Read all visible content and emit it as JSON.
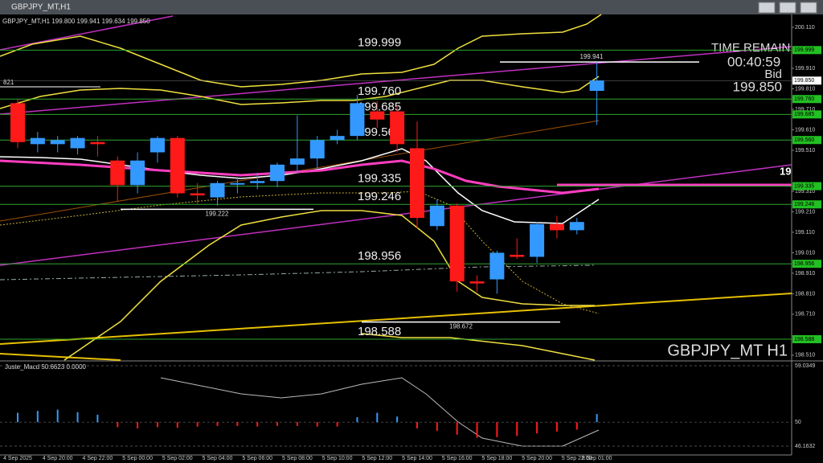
{
  "window": {
    "title": "GBPJPY_MT,H1"
  },
  "chart_data": {
    "type": "candlestick",
    "header": "GBPJPY_MT,H1  199.800 199.941 199.634 199.850",
    "symbol_label": "GBPJPY_MT H1",
    "time_remain_label": "TIME REMAIN",
    "time_remain": "00:40:59",
    "bid_label": "Bid",
    "bid": {
      "value": 199.85,
      "label": "199.850"
    },
    "left_label": "821",
    "cut_label": "19",
    "up_color": "#3399ff",
    "down_color": "#ff1a1a",
    "categories": [
      "4 Sep 2025",
      null,
      "4 Sep 20:00",
      null,
      "4 Sep 22:00",
      null,
      "5 Sep 00:00",
      null,
      "5 Sep 02:00",
      null,
      "5 Sep 04:00",
      null,
      "5 Sep 06:00",
      null,
      "5 Sep 08:00",
      null,
      "5 Sep 10:00",
      null,
      "5 Sep 12:00",
      null,
      "5 Sep 14:00",
      null,
      "5 Sep 16:00",
      null,
      "5 Sep 18:00",
      null,
      "5 Sep 20:00",
      null,
      "5 Sep 22:00",
      "8 Sep 01:00"
    ],
    "open": [
      199.74,
      199.54,
      199.54,
      199.52,
      199.55,
      199.46,
      199.34,
      199.5,
      199.57,
      199.3,
      199.28,
      199.35,
      199.35,
      199.36,
      199.44,
      199.47,
      199.56,
      199.58,
      199.7,
      199.7,
      199.52,
      199.14,
      199.24,
      198.87,
      198.88,
      199.0,
      198.99,
      199.15,
      199.12,
      199.8
    ],
    "high": [
      199.76,
      199.6,
      199.58,
      199.58,
      199.58,
      199.48,
      199.5,
      199.58,
      199.58,
      199.35,
      199.36,
      199.38,
      199.4,
      199.45,
      199.68,
      199.58,
      199.61,
      199.78,
      199.75,
      199.73,
      199.65,
      199.27,
      199.25,
      198.9,
      199.02,
      199.08,
      199.16,
      199.19,
      199.18,
      199.941
    ],
    "low": [
      199.52,
      199.5,
      199.5,
      199.49,
      199.48,
      199.26,
      199.3,
      199.45,
      199.28,
      199.25,
      199.24,
      199.3,
      199.32,
      199.33,
      199.4,
      199.42,
      199.54,
      199.56,
      199.62,
      199.5,
      199.13,
      199.12,
      198.82,
      198.82,
      198.81,
      198.98,
      198.96,
      199.08,
      199.1,
      199.634
    ],
    "close": [
      199.55,
      199.57,
      199.56,
      199.57,
      199.54,
      199.34,
      199.46,
      199.57,
      199.3,
      199.29,
      199.35,
      199.35,
      199.36,
      199.44,
      199.47,
      199.56,
      199.58,
      199.74,
      199.66,
      199.54,
      199.18,
      199.24,
      198.87,
      198.86,
      199.01,
      198.99,
      199.15,
      199.12,
      199.16,
      199.85
    ],
    "ylim": [
      198.486,
      200.165
    ],
    "yticks": [
      {
        "value": 200.11,
        "label": "200.110"
      },
      {
        "value": 199.91,
        "label": "199.910"
      },
      {
        "value": 199.81,
        "label": "199.810"
      },
      {
        "value": 199.71,
        "label": "199.710"
      },
      {
        "value": 199.61,
        "label": "199.610"
      },
      {
        "value": 199.51,
        "label": "199.510"
      },
      {
        "value": 199.31,
        "label": "199.310"
      },
      {
        "value": 199.21,
        "label": "199.210"
      },
      {
        "value": 199.11,
        "label": "199.110"
      },
      {
        "value": 199.01,
        "label": "199.010"
      },
      {
        "value": 198.91,
        "label": "198.910"
      },
      {
        "value": 198.81,
        "label": "198.810"
      },
      {
        "value": 198.71,
        "label": "198.710"
      },
      {
        "value": 198.51,
        "label": "198.510"
      }
    ],
    "levels": [
      {
        "value": 199.999,
        "label": "199.999"
      },
      {
        "value": 199.76,
        "label": "199.760"
      },
      {
        "value": 199.685,
        "label": "199.685"
      },
      {
        "value": 199.56,
        "label": "199.560"
      },
      {
        "value": 199.335,
        "label": "199.335"
      },
      {
        "value": 199.246,
        "label": "199.246"
      },
      {
        "value": 198.956,
        "label": "198.956"
      },
      {
        "value": 198.588,
        "label": "198.588"
      }
    ],
    "marker_lines": [
      {
        "value": 199.941,
        "label": "199.941"
      },
      {
        "value": 199.222,
        "label": "199.222"
      },
      {
        "value": 198.672,
        "label": "198.672"
      }
    ],
    "indicator": {
      "label": "Juste_Macd 50.6623 0.0000",
      "ylim": [
        46.1632,
        59.0349
      ],
      "yticks": [
        59.0349,
        50,
        46.1632
      ],
      "values": [
        51.5,
        51.8,
        52.0,
        51.6,
        51.2,
        49.2,
        49.0,
        49.2,
        49.1,
        49.3,
        49.4,
        49.4,
        49.3,
        49.4,
        49.4,
        49.3,
        49.3,
        50.8,
        51.5,
        50.9,
        49.0,
        48.6,
        48.0,
        47.5,
        47.6,
        47.8,
        48.2,
        48.5,
        48.8,
        51.3
      ]
    }
  }
}
